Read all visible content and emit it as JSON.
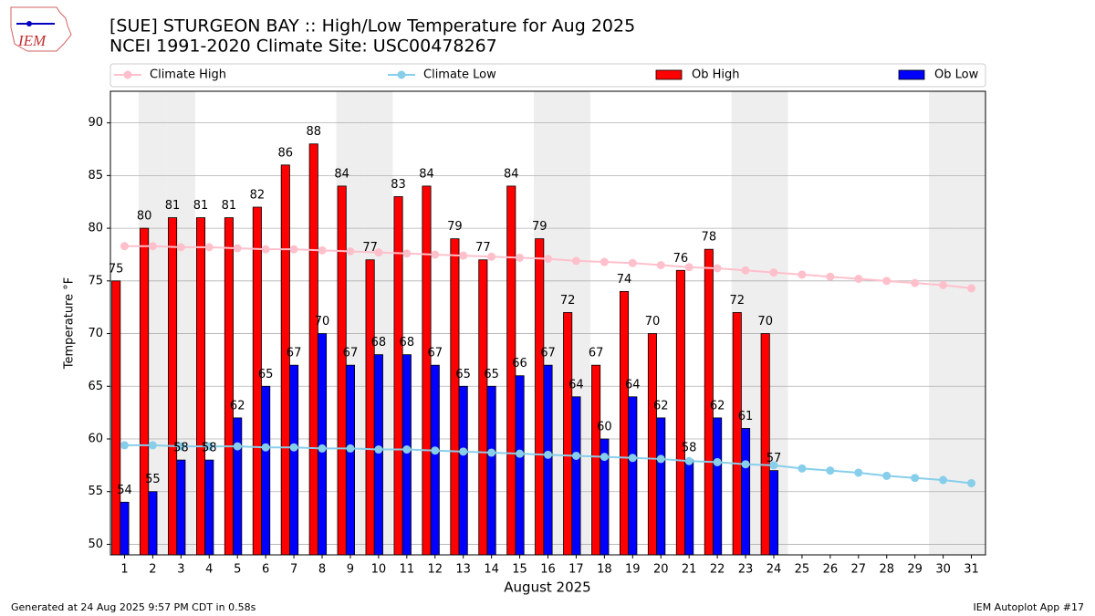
{
  "chart_data": {
    "type": "bar_line",
    "title": "[SUE] STURGEON BAY :: High/Low Temperature for Aug 2025",
    "subtitle": "NCEI 1991-2020 Climate Site: USC00478267",
    "logo_text": "IEM",
    "xlabel": "August 2025",
    "ylabel": "Temperature $^\\circ$F",
    "footer_left": "Generated at 24 Aug 2025 9:57 PM CDT in 0.58s",
    "footer_right": "IEM Autoplot App #17",
    "categories": [
      "1",
      "2",
      "3",
      "4",
      "5",
      "6",
      "7",
      "8",
      "9",
      "10",
      "11",
      "12",
      "13",
      "14",
      "15",
      "16",
      "17",
      "18",
      "19",
      "20",
      "21",
      "22",
      "23",
      "24",
      "25",
      "26",
      "27",
      "28",
      "29",
      "30",
      "31"
    ],
    "weekend_days": [
      2,
      3,
      9,
      10,
      16,
      17,
      23,
      24,
      30,
      31
    ],
    "ylim": [
      49,
      93
    ],
    "yticks": [
      50,
      55,
      60,
      65,
      70,
      75,
      80,
      85,
      90
    ],
    "grid": true,
    "series": [
      {
        "name": "Climate High",
        "kind": "line",
        "color": "#ffc0cb",
        "values": [
          78.3,
          78.3,
          78.2,
          78.2,
          78.1,
          78.0,
          78.0,
          77.9,
          77.8,
          77.7,
          77.6,
          77.5,
          77.4,
          77.3,
          77.2,
          77.1,
          76.9,
          76.8,
          76.7,
          76.5,
          76.3,
          76.2,
          76.0,
          75.8,
          75.6,
          75.4,
          75.2,
          75.0,
          74.8,
          74.6,
          74.3
        ]
      },
      {
        "name": "Climate Low",
        "kind": "line",
        "color": "#87ceeb",
        "values": [
          59.4,
          59.4,
          59.3,
          59.3,
          59.3,
          59.2,
          59.2,
          59.1,
          59.1,
          59.0,
          59.0,
          58.9,
          58.8,
          58.7,
          58.6,
          58.5,
          58.4,
          58.3,
          58.2,
          58.1,
          57.9,
          57.8,
          57.6,
          57.5,
          57.2,
          57.0,
          56.8,
          56.5,
          56.3,
          56.1,
          55.8
        ]
      },
      {
        "name": "Ob High",
        "kind": "bar",
        "color": "#ff0000",
        "values": [
          75,
          80,
          81,
          81,
          81,
          82,
          86,
          88,
          84,
          77,
          83,
          84,
          79,
          77,
          84,
          79,
          72,
          67,
          74,
          70,
          76,
          78,
          72,
          70,
          null,
          null,
          null,
          null,
          null,
          null,
          null
        ]
      },
      {
        "name": "Ob Low",
        "kind": "bar",
        "color": "#0000ff",
        "values": [
          54,
          55,
          58,
          58,
          62,
          65,
          67,
          70,
          67,
          68,
          68,
          67,
          65,
          65,
          66,
          67,
          64,
          60,
          64,
          62,
          58,
          62,
          61,
          57,
          null,
          null,
          null,
          null,
          null,
          null,
          null
        ]
      }
    ]
  }
}
